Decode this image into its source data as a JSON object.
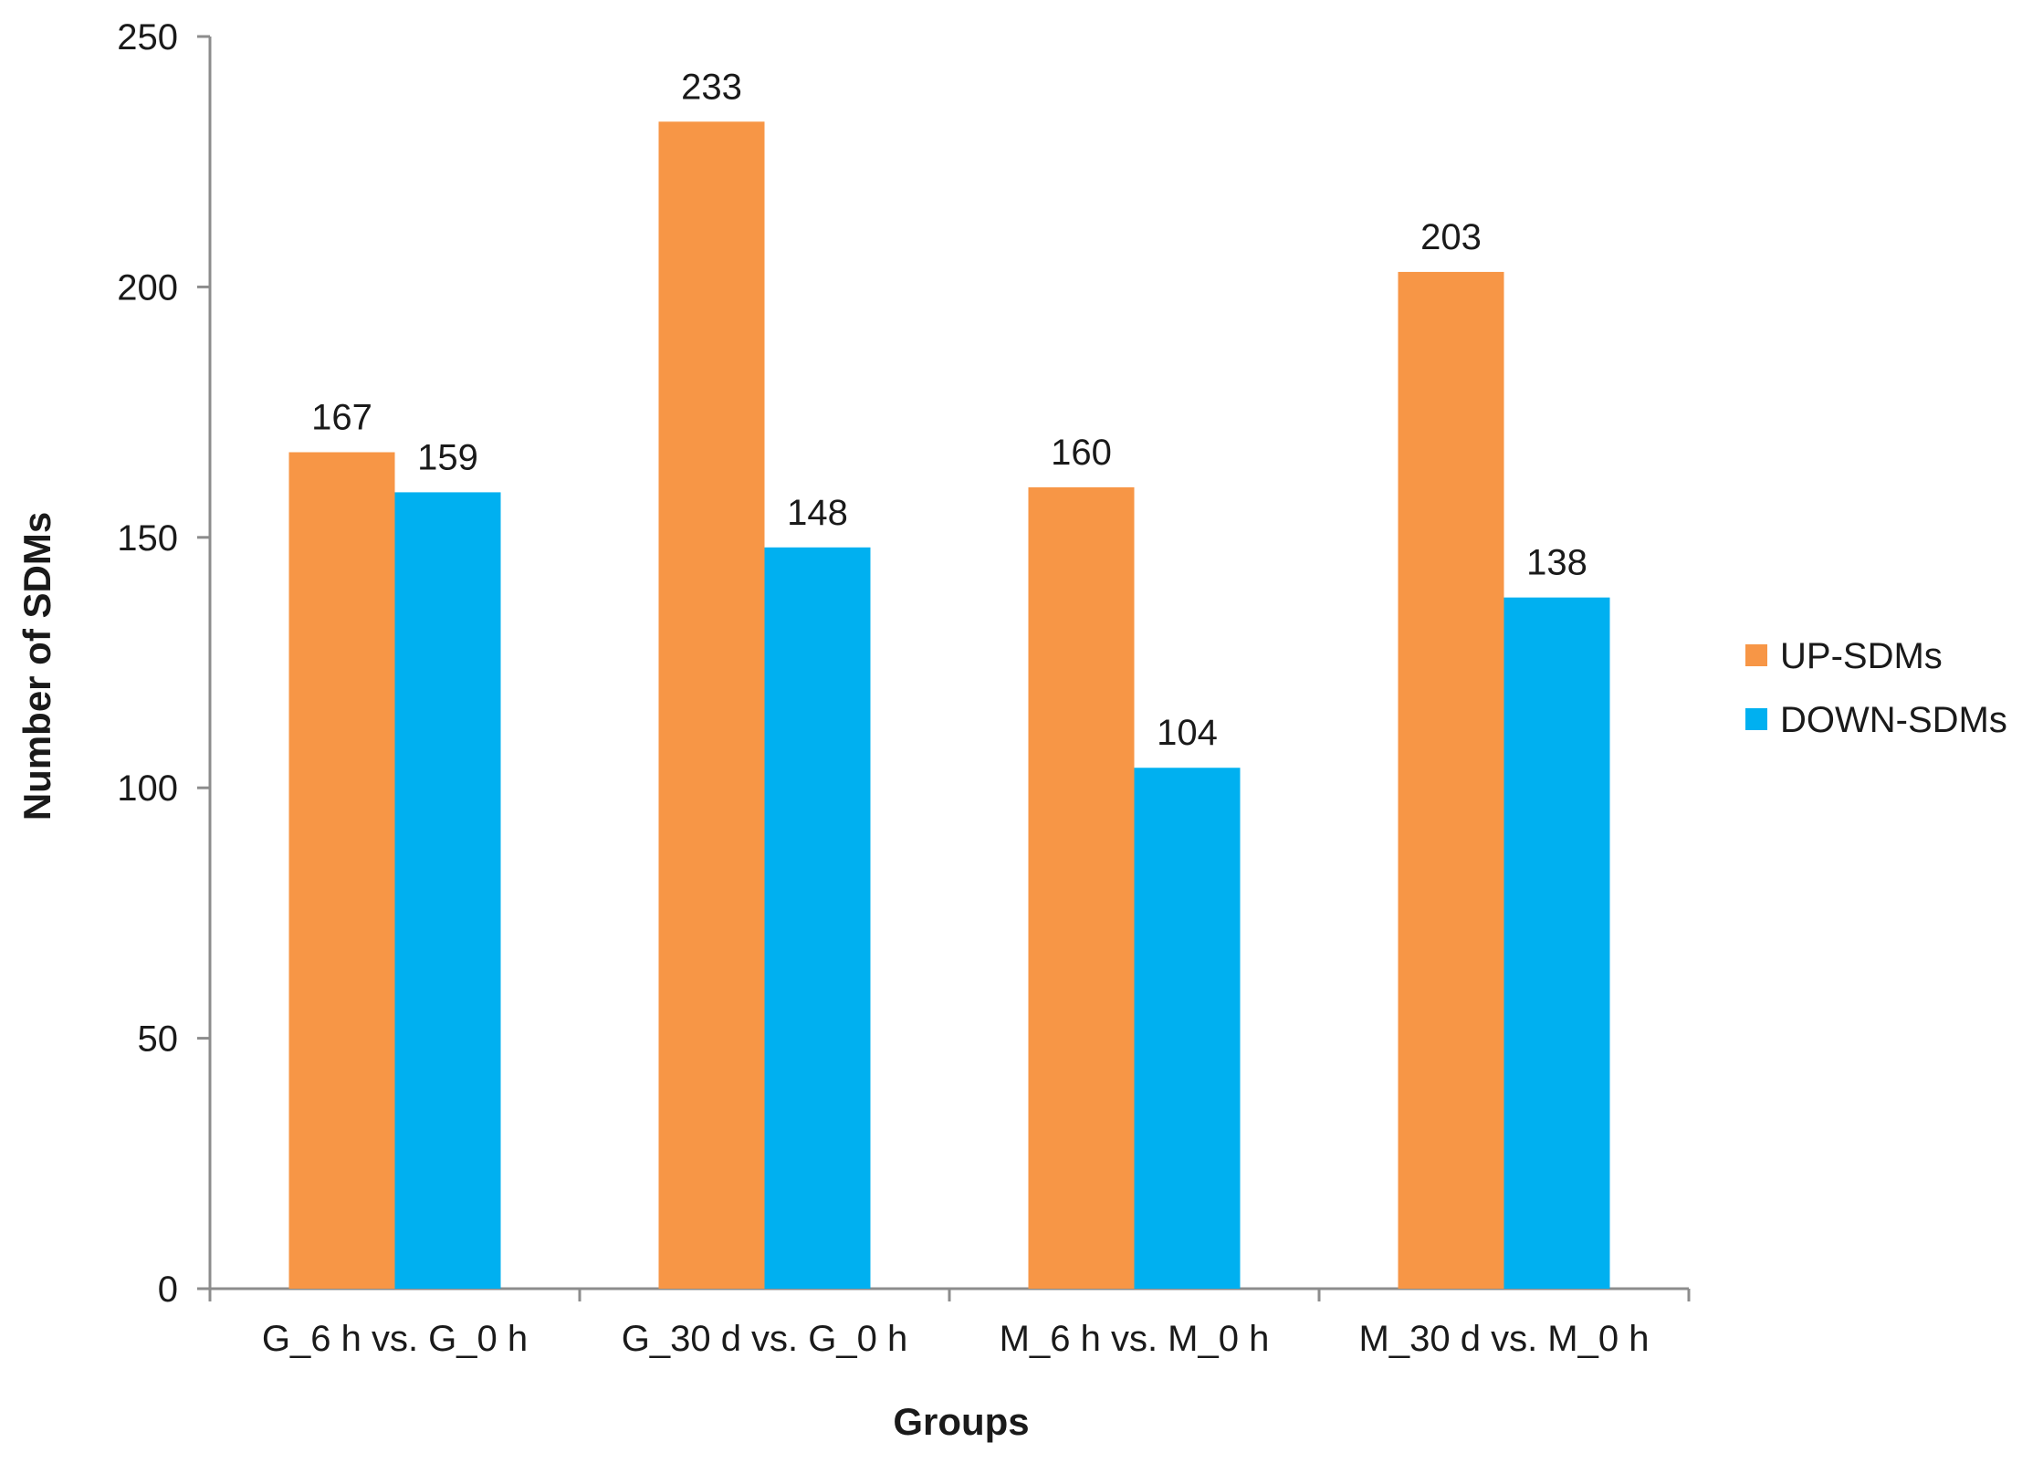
{
  "chart_data": {
    "type": "bar",
    "title": "",
    "xlabel": "Groups",
    "ylabel": "Number of SDMs",
    "categories": [
      "G_6 h vs. G_0 h",
      "G_30 d vs. G_0 h",
      "M_6 h vs. M_0 h",
      "M_30 d vs. M_0 h"
    ],
    "series": [
      {
        "name": "UP-SDMs",
        "values": [
          167,
          233,
          160,
          203
        ],
        "color": "#F79646"
      },
      {
        "name": "DOWN-SDMs",
        "values": [
          159,
          148,
          104,
          138
        ],
        "color": "#00B0F0"
      }
    ],
    "ylim": [
      0,
      250
    ],
    "yticks": [
      0,
      50,
      100,
      150,
      200,
      250
    ],
    "grid": false,
    "legend_position": "right",
    "data_labels": true
  }
}
